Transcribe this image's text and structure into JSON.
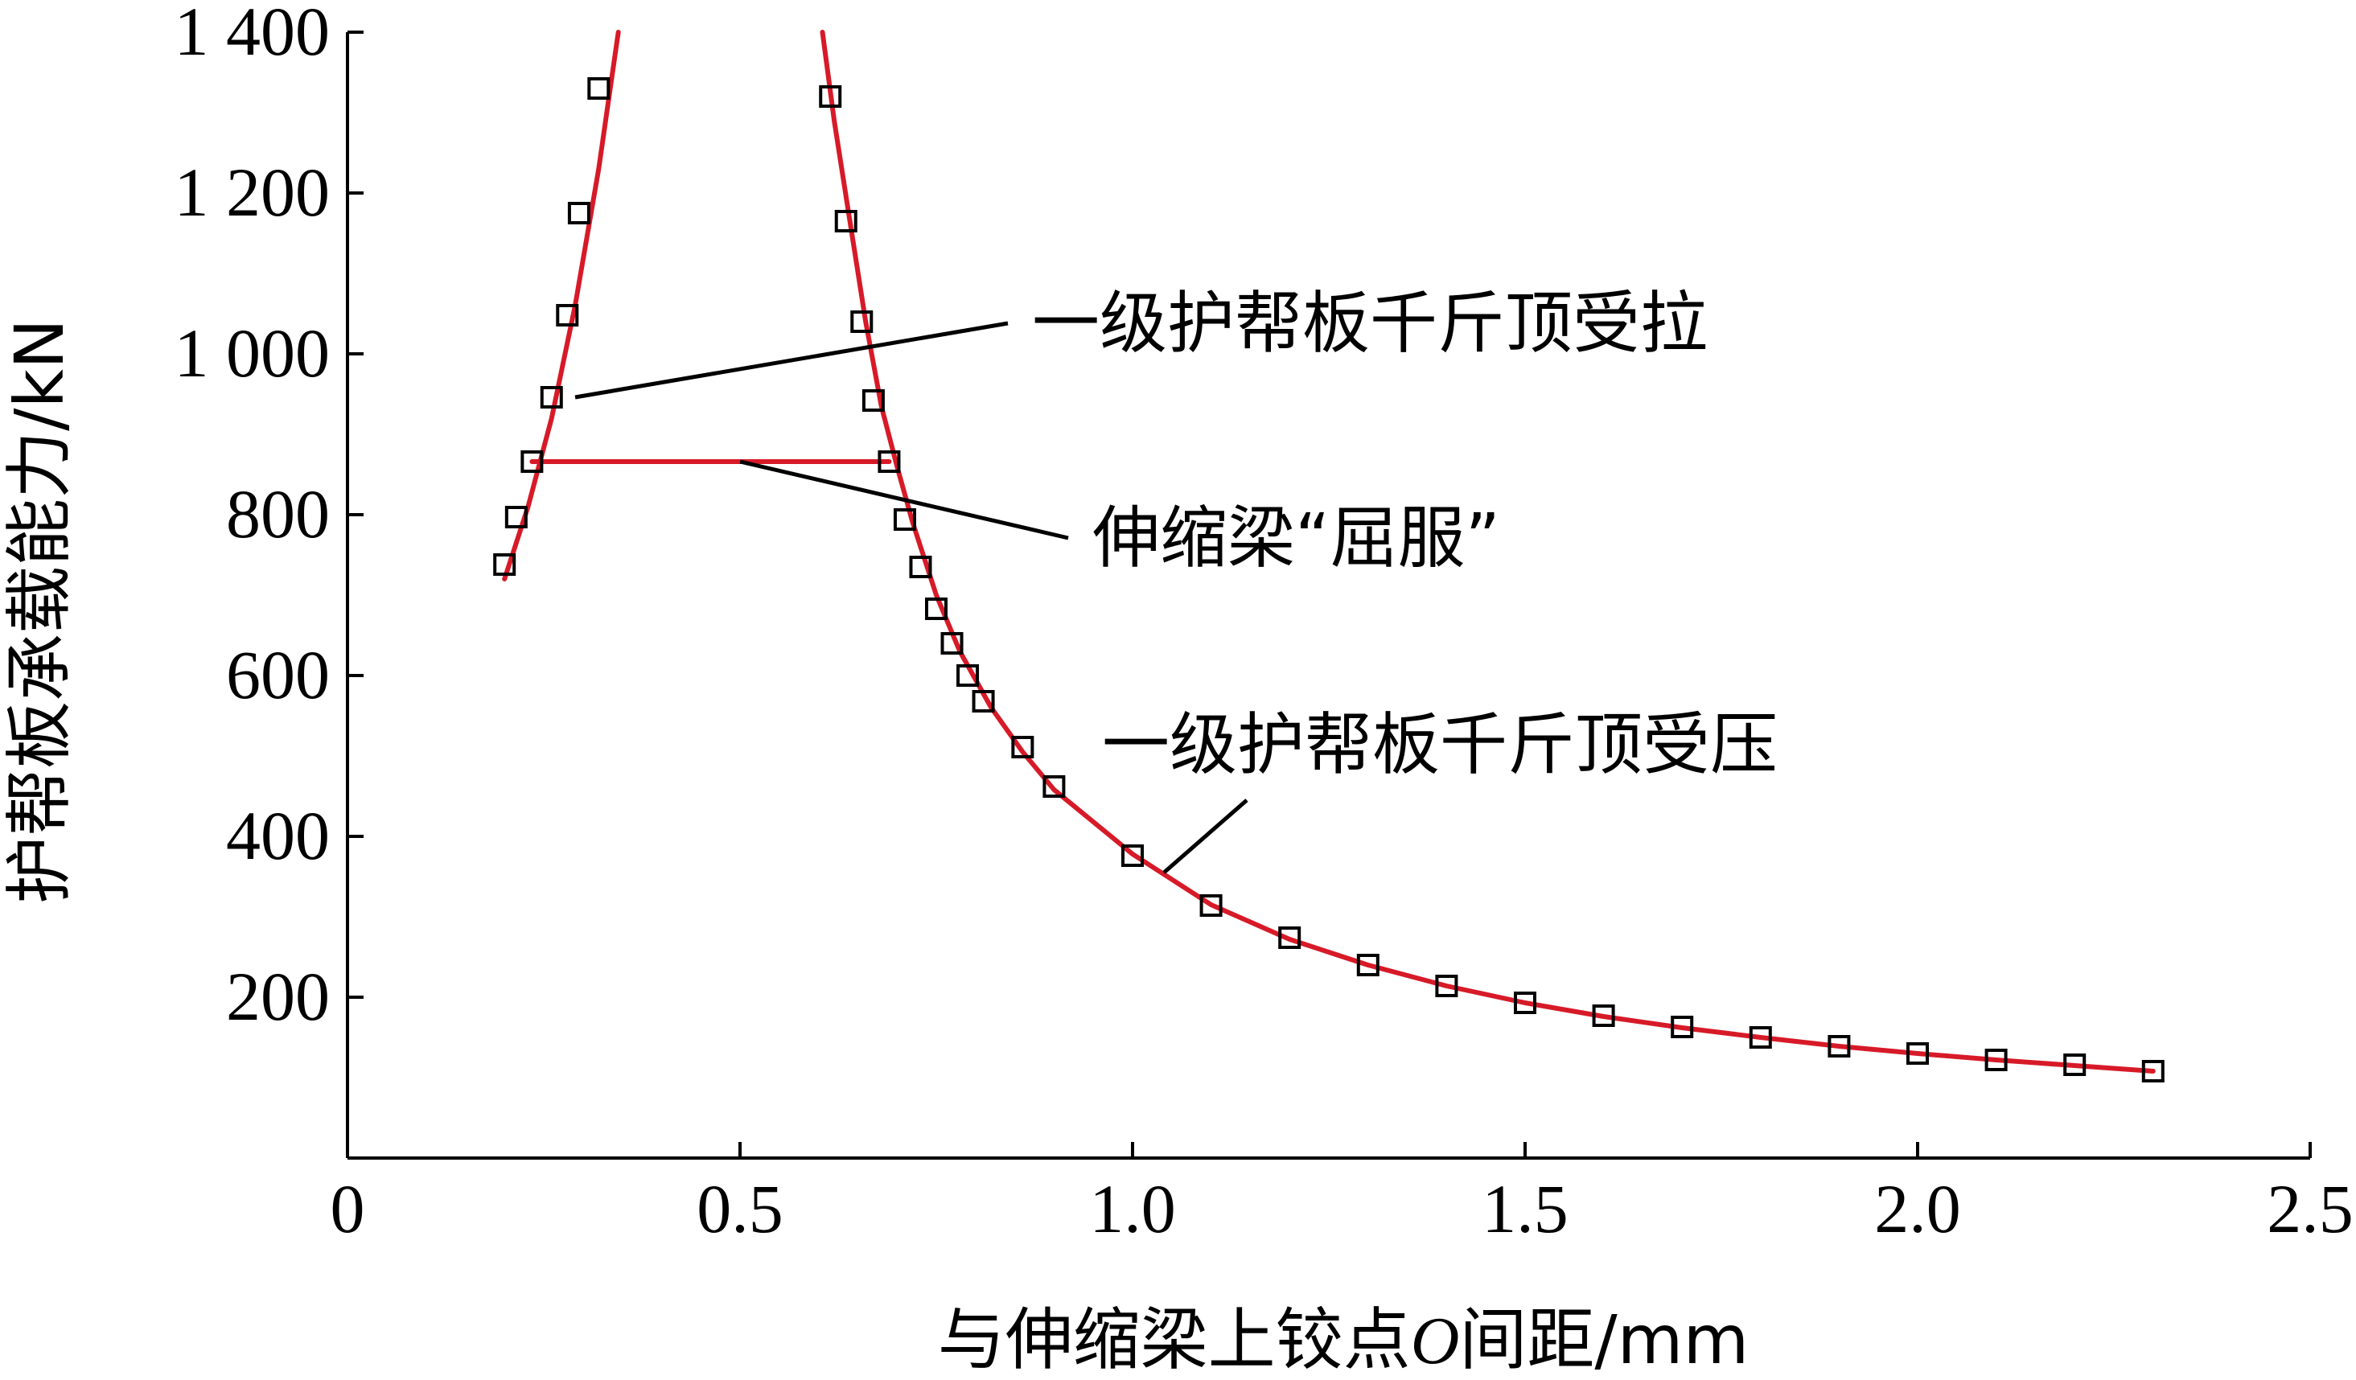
{
  "chart_data": {
    "type": "line",
    "xlabel_prefix": "与伸缩梁上铰点",
    "xlabel_italic": "O",
    "xlabel_suffix": "间距/mm",
    "ylabel": "护帮板承载能力/kN",
    "xlim": [
      0,
      2.5
    ],
    "ylim": [
      0,
      1400
    ],
    "x_ticks": [
      0,
      0.5,
      1.0,
      1.5,
      2.0,
      2.5
    ],
    "x_tick_labels": [
      "0",
      "0.5",
      "1.0",
      "1.5",
      "2.0",
      "2.5"
    ],
    "y_ticks": [
      200,
      400,
      600,
      800,
      1000,
      1200,
      1400
    ],
    "y_tick_labels": [
      "200",
      "400",
      "600",
      "800",
      "1 000",
      "1 200",
      "1 400"
    ],
    "grid": false,
    "colors": {
      "line": "#d71a28",
      "marker": "#000000",
      "axis": "#000000"
    },
    "series": [
      {
        "name": "一级护帮板千斤顶受拉",
        "style": "line+markers",
        "line": {
          "x": [
            0.2,
            0.23,
            0.26,
            0.29,
            0.32,
            0.345
          ],
          "y": [
            720,
            810,
            920,
            1060,
            1230,
            1400
          ]
        },
        "markers": {
          "x": [
            0.2,
            0.215,
            0.235,
            0.26,
            0.28,
            0.295,
            0.32
          ],
          "y": [
            738,
            797,
            866,
            946,
            1048,
            1175,
            1330
          ]
        }
      },
      {
        "name": "伸缩梁“屈服”",
        "style": "line",
        "line": {
          "x": [
            0.235,
            0.69
          ],
          "y": [
            866,
            866
          ]
        },
        "markers": {
          "x": [],
          "y": []
        }
      },
      {
        "name": "一级护帮板千斤顶受压",
        "style": "line+markers",
        "line": {
          "x": [
            0.605,
            0.62,
            0.64,
            0.66,
            0.68,
            0.7,
            0.72,
            0.75,
            0.78,
            0.82,
            0.86,
            0.9,
            1.0,
            1.1,
            1.2,
            1.3,
            1.4,
            1.5,
            1.6,
            1.7,
            1.8,
            1.9,
            2.0,
            2.1,
            2.2,
            2.3
          ],
          "y": [
            1400,
            1290,
            1165,
            1040,
            935,
            860,
            790,
            700,
            630,
            560,
            505,
            458,
            378,
            315,
            272,
            240,
            214,
            193,
            176,
            162,
            150,
            139,
            130,
            122,
            115,
            108
          ]
        },
        "markers": {
          "x": [
            0.615,
            0.635,
            0.655,
            0.67,
            0.69,
            0.71,
            0.73,
            0.75,
            0.77,
            0.79,
            0.81,
            0.86,
            0.9,
            1.0,
            1.1,
            1.2,
            1.3,
            1.4,
            1.5,
            1.6,
            1.7,
            1.8,
            1.9,
            2.0,
            2.1,
            2.2,
            2.3
          ],
          "y": [
            1320,
            1165,
            1040,
            942,
            866,
            794,
            735,
            683,
            640,
            600,
            568,
            511,
            462,
            376,
            314,
            274,
            240,
            214,
            193,
            177,
            163,
            150,
            139,
            130,
            122,
            116,
            108
          ]
        }
      }
    ],
    "annotations": [
      {
        "text": "一级护帮板千斤顶受拉",
        "series": 0,
        "point": [
          0.29,
          946
        ]
      },
      {
        "text": "伸缩梁“屈服”",
        "series": 1,
        "point": [
          0.5,
          866
        ]
      },
      {
        "text": "一级护帮板千斤顶受压",
        "series": 2,
        "point": [
          1.04,
          355
        ]
      }
    ]
  }
}
